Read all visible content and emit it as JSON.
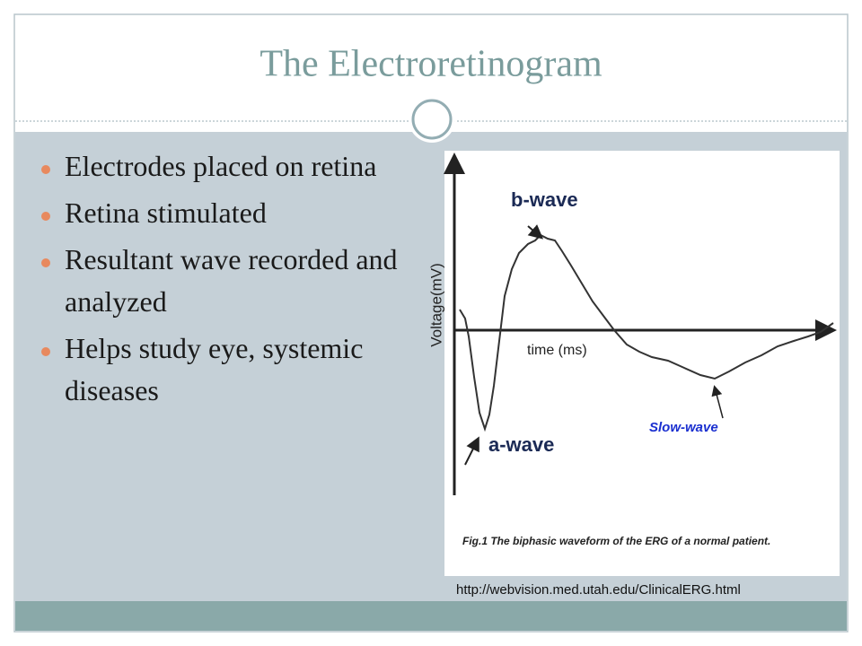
{
  "header": {
    "title": "The Electroretinogram"
  },
  "bullets": [
    "Electrodes placed on retina",
    "Retina stimulated",
    "Resultant wave recorded and analyzed",
    "Helps study eye, systemic diseases"
  ],
  "figure": {
    "y_axis_label": "Voltage(mV)",
    "x_axis_label": "time (ms)",
    "b_wave": "b-wave",
    "a_wave": "a-wave",
    "slow_wave": "Slow-wave",
    "caption": "Fig.1 The biphasic waveform of the ERG of a normal patient."
  },
  "source": "http://webvision.med.utah.edu/ClinicalERG.html"
}
